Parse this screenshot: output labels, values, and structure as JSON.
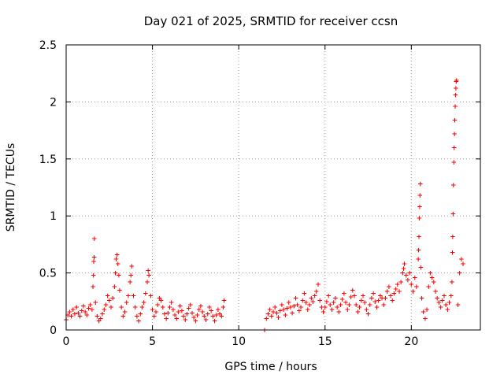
{
  "chart_data": {
    "type": "scatter",
    "title": "Day 021 of 2025, SRMTID for receiver ccsn",
    "xlabel": "GPS time / hours",
    "ylabel": "SRMTID / TECUs",
    "xlim": [
      0,
      24
    ],
    "ylim": [
      0,
      2.5
    ],
    "xticks": [
      0,
      5,
      10,
      15,
      20
    ],
    "xtick_labels": [
      "0",
      "5",
      "10",
      "15",
      "20"
    ],
    "yticks": [
      0,
      0.5,
      1,
      1.5,
      2,
      2.5
    ],
    "ytick_labels": [
      "0",
      "0.5",
      "1",
      "1.5",
      "2",
      "2.5"
    ],
    "grid": true,
    "marker": "+",
    "color": "#ff0000",
    "series": [
      {
        "name": "SRMTID",
        "points": [
          [
            0.0,
            0.09
          ],
          [
            0.1,
            0.13
          ],
          [
            0.2,
            0.16
          ],
          [
            0.3,
            0.12
          ],
          [
            0.4,
            0.18
          ],
          [
            0.5,
            0.14
          ],
          [
            0.6,
            0.2
          ],
          [
            0.7,
            0.15
          ],
          [
            0.8,
            0.12
          ],
          [
            0.9,
            0.17
          ],
          [
            1.0,
            0.21
          ],
          [
            1.1,
            0.16
          ],
          [
            1.2,
            0.13
          ],
          [
            1.3,
            0.19
          ],
          [
            1.4,
            0.22
          ],
          [
            1.5,
            0.18
          ],
          [
            1.55,
            0.38
          ],
          [
            1.58,
            0.48
          ],
          [
            1.6,
            0.6
          ],
          [
            1.62,
            0.64
          ],
          [
            1.63,
            0.8
          ],
          [
            1.7,
            0.24
          ],
          [
            1.8,
            0.12
          ],
          [
            1.9,
            0.08
          ],
          [
            2.0,
            0.1
          ],
          [
            2.1,
            0.14
          ],
          [
            2.2,
            0.18
          ],
          [
            2.3,
            0.22
          ],
          [
            2.4,
            0.3
          ],
          [
            2.5,
            0.26
          ],
          [
            2.6,
            0.2
          ],
          [
            2.7,
            0.28
          ],
          [
            2.8,
            0.38
          ],
          [
            2.85,
            0.5
          ],
          [
            2.9,
            0.62
          ],
          [
            2.95,
            0.66
          ],
          [
            3.0,
            0.58
          ],
          [
            3.05,
            0.48
          ],
          [
            3.1,
            0.35
          ],
          [
            3.2,
            0.2
          ],
          [
            3.3,
            0.12
          ],
          [
            3.4,
            0.16
          ],
          [
            3.5,
            0.24
          ],
          [
            3.6,
            0.3
          ],
          [
            3.7,
            0.42
          ],
          [
            3.75,
            0.48
          ],
          [
            3.8,
            0.56
          ],
          [
            3.9,
            0.3
          ],
          [
            4.0,
            0.2
          ],
          [
            4.1,
            0.12
          ],
          [
            4.2,
            0.08
          ],
          [
            4.3,
            0.14
          ],
          [
            4.4,
            0.2
          ],
          [
            4.5,
            0.24
          ],
          [
            4.6,
            0.32
          ],
          [
            4.7,
            0.42
          ],
          [
            4.75,
            0.52
          ],
          [
            4.8,
            0.48
          ],
          [
            4.9,
            0.3
          ],
          [
            5.0,
            0.18
          ],
          [
            5.1,
            0.12
          ],
          [
            5.2,
            0.16
          ],
          [
            5.3,
            0.22
          ],
          [
            5.4,
            0.28
          ],
          [
            5.5,
            0.26
          ],
          [
            5.6,
            0.2
          ],
          [
            5.7,
            0.14
          ],
          [
            5.8,
            0.1
          ],
          [
            5.9,
            0.15
          ],
          [
            6.0,
            0.2
          ],
          [
            6.1,
            0.24
          ],
          [
            6.2,
            0.18
          ],
          [
            6.3,
            0.13
          ],
          [
            6.4,
            0.1
          ],
          [
            6.5,
            0.16
          ],
          [
            6.6,
            0.21
          ],
          [
            6.7,
            0.17
          ],
          [
            6.8,
            0.12
          ],
          [
            6.9,
            0.09
          ],
          [
            7.0,
            0.14
          ],
          [
            7.1,
            0.19
          ],
          [
            7.2,
            0.22
          ],
          [
            7.3,
            0.15
          ],
          [
            7.4,
            0.11
          ],
          [
            7.5,
            0.08
          ],
          [
            7.6,
            0.13
          ],
          [
            7.7,
            0.18
          ],
          [
            7.8,
            0.21
          ],
          [
            7.9,
            0.16
          ],
          [
            8.0,
            0.12
          ],
          [
            8.1,
            0.09
          ],
          [
            8.2,
            0.14
          ],
          [
            8.3,
            0.2
          ],
          [
            8.4,
            0.17
          ],
          [
            8.5,
            0.12
          ],
          [
            8.6,
            0.08
          ],
          [
            8.7,
            0.13
          ],
          [
            8.8,
            0.18
          ],
          [
            8.9,
            0.14
          ],
          [
            9.0,
            0.12
          ],
          [
            9.1,
            0.2
          ],
          [
            9.15,
            0.26
          ],
          [
            11.5,
            0.0
          ],
          [
            11.6,
            0.1
          ],
          [
            11.7,
            0.14
          ],
          [
            11.8,
            0.18
          ],
          [
            11.9,
            0.12
          ],
          [
            12.0,
            0.16
          ],
          [
            12.1,
            0.2
          ],
          [
            12.2,
            0.15
          ],
          [
            12.3,
            0.11
          ],
          [
            12.4,
            0.17
          ],
          [
            12.5,
            0.22
          ],
          [
            12.6,
            0.18
          ],
          [
            12.7,
            0.13
          ],
          [
            12.8,
            0.19
          ],
          [
            12.9,
            0.24
          ],
          [
            13.0,
            0.2
          ],
          [
            13.1,
            0.15
          ],
          [
            13.2,
            0.21
          ],
          [
            13.3,
            0.28
          ],
          [
            13.4,
            0.22
          ],
          [
            13.5,
            0.17
          ],
          [
            13.6,
            0.2
          ],
          [
            13.7,
            0.26
          ],
          [
            13.8,
            0.32
          ],
          [
            13.9,
            0.24
          ],
          [
            14.0,
            0.18
          ],
          [
            14.1,
            0.22
          ],
          [
            14.2,
            0.28
          ],
          [
            14.3,
            0.25
          ],
          [
            14.4,
            0.3
          ],
          [
            14.5,
            0.34
          ],
          [
            14.6,
            0.4
          ],
          [
            14.7,
            0.26
          ],
          [
            14.8,
            0.2
          ],
          [
            14.9,
            0.16
          ],
          [
            15.0,
            0.2
          ],
          [
            15.1,
            0.25
          ],
          [
            15.2,
            0.3
          ],
          [
            15.3,
            0.22
          ],
          [
            15.4,
            0.18
          ],
          [
            15.5,
            0.24
          ],
          [
            15.6,
            0.28
          ],
          [
            15.7,
            0.2
          ],
          [
            15.8,
            0.16
          ],
          [
            15.9,
            0.22
          ],
          [
            16.0,
            0.27
          ],
          [
            16.1,
            0.32
          ],
          [
            16.2,
            0.24
          ],
          [
            16.3,
            0.18
          ],
          [
            16.4,
            0.22
          ],
          [
            16.5,
            0.29
          ],
          [
            16.6,
            0.35
          ],
          [
            16.7,
            0.3
          ],
          [
            16.8,
            0.22
          ],
          [
            16.9,
            0.16
          ],
          [
            17.0,
            0.2
          ],
          [
            17.1,
            0.26
          ],
          [
            17.2,
            0.3
          ],
          [
            17.3,
            0.24
          ],
          [
            17.4,
            0.18
          ],
          [
            17.5,
            0.14
          ],
          [
            17.6,
            0.22
          ],
          [
            17.7,
            0.28
          ],
          [
            17.8,
            0.32
          ],
          [
            17.9,
            0.25
          ],
          [
            18.0,
            0.2
          ],
          [
            18.1,
            0.26
          ],
          [
            18.2,
            0.3
          ],
          [
            18.3,
            0.28
          ],
          [
            18.4,
            0.22
          ],
          [
            18.5,
            0.28
          ],
          [
            18.6,
            0.34
          ],
          [
            18.7,
            0.38
          ],
          [
            18.8,
            0.3
          ],
          [
            18.9,
            0.26
          ],
          [
            19.0,
            0.32
          ],
          [
            19.1,
            0.36
          ],
          [
            19.2,
            0.4
          ],
          [
            19.3,
            0.34
          ],
          [
            19.4,
            0.42
          ],
          [
            19.5,
            0.5
          ],
          [
            19.55,
            0.54
          ],
          [
            19.6,
            0.58
          ],
          [
            19.7,
            0.48
          ],
          [
            19.8,
            0.44
          ],
          [
            19.9,
            0.5
          ],
          [
            20.0,
            0.4
          ],
          [
            20.1,
            0.34
          ],
          [
            20.2,
            0.46
          ],
          [
            20.3,
            0.38
          ],
          [
            20.4,
            0.62
          ],
          [
            20.42,
            0.7
          ],
          [
            20.44,
            0.82
          ],
          [
            20.46,
            0.98
          ],
          [
            20.48,
            1.08
          ],
          [
            20.5,
            1.18
          ],
          [
            20.52,
            1.28
          ],
          [
            20.55,
            0.55
          ],
          [
            20.6,
            0.28
          ],
          [
            20.7,
            0.16
          ],
          [
            20.8,
            0.1
          ],
          [
            20.9,
            0.18
          ],
          [
            21.0,
            0.38
          ],
          [
            21.1,
            0.5
          ],
          [
            21.2,
            0.46
          ],
          [
            21.3,
            0.42
          ],
          [
            21.4,
            0.34
          ],
          [
            21.5,
            0.28
          ],
          [
            21.6,
            0.24
          ],
          [
            21.7,
            0.2
          ],
          [
            21.8,
            0.26
          ],
          [
            21.9,
            0.3
          ],
          [
            22.0,
            0.22
          ],
          [
            22.1,
            0.18
          ],
          [
            22.2,
            0.24
          ],
          [
            22.3,
            0.3
          ],
          [
            22.35,
            0.42
          ],
          [
            22.38,
            0.68
          ],
          [
            22.4,
            0.82
          ],
          [
            22.42,
            1.02
          ],
          [
            22.44,
            1.27
          ],
          [
            22.46,
            1.47
          ],
          [
            22.48,
            1.6
          ],
          [
            22.5,
            1.72
          ],
          [
            22.52,
            1.84
          ],
          [
            22.54,
            1.96
          ],
          [
            22.56,
            2.06
          ],
          [
            22.58,
            2.12
          ],
          [
            22.6,
            2.18
          ],
          [
            22.62,
            2.19
          ],
          [
            22.7,
            0.22
          ],
          [
            22.8,
            0.5
          ],
          [
            22.9,
            0.62
          ],
          [
            23.0,
            0.58
          ]
        ]
      }
    ]
  }
}
